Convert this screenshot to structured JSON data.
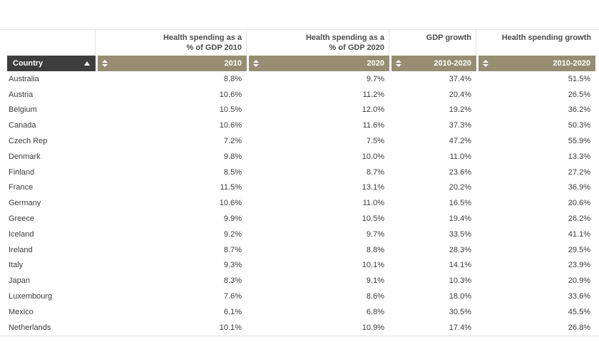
{
  "table": {
    "columns": [
      {
        "id": "country",
        "group_line1": "",
        "group_line2": "",
        "sort_label": "Country",
        "sort_state": "ascending"
      },
      {
        "id": "hs2010",
        "group_line1": "Health spending as a",
        "group_line2": "% of GDP 2010",
        "sort_label": "2010",
        "sort_state": "none"
      },
      {
        "id": "hs2020",
        "group_line1": "Health spending as a",
        "group_line2": "% of GDP 2020",
        "sort_label": "2020",
        "sort_state": "none"
      },
      {
        "id": "gdp",
        "group_line1": "GDP growth",
        "group_line2": "",
        "sort_label": "2010-2020",
        "sort_state": "none"
      },
      {
        "id": "hsg",
        "group_line1": "Health spending growth",
        "group_line2": "",
        "sort_label": "2010-2020",
        "sort_state": "none"
      }
    ],
    "rows": [
      {
        "country": "Australia",
        "hs2010": "8.8%",
        "hs2020": "9.7%",
        "gdp": "37.4%",
        "hsg": "51.5%"
      },
      {
        "country": "Austria",
        "hs2010": "10.6%",
        "hs2020": "11.2%",
        "gdp": "20.4%",
        "hsg": "26.5%"
      },
      {
        "country": "Belgium",
        "hs2010": "10.5%",
        "hs2020": "12.0%",
        "gdp": "19.2%",
        "hsg": "36.2%"
      },
      {
        "country": "Canada",
        "hs2010": "10.6%",
        "hs2020": "11.6%",
        "gdp": "37.3%",
        "hsg": "50.3%"
      },
      {
        "country": "Czech Rep",
        "hs2010": "7.2%",
        "hs2020": "7.5%",
        "gdp": "47.2%",
        "hsg": "55.9%"
      },
      {
        "country": "Denmark",
        "hs2010": "9.8%",
        "hs2020": "10.0%",
        "gdp": "11.0%",
        "hsg": "13.3%"
      },
      {
        "country": "Finland",
        "hs2010": "8.5%",
        "hs2020": "8.7%",
        "gdp": "23.6%",
        "hsg": "27.2%"
      },
      {
        "country": "France",
        "hs2010": "11.5%",
        "hs2020": "13.1%",
        "gdp": "20.2%",
        "hsg": "36.9%"
      },
      {
        "country": "Germany",
        "hs2010": "10.6%",
        "hs2020": "11.0%",
        "gdp": "16.5%",
        "hsg": "20.6%"
      },
      {
        "country": "Greece",
        "hs2010": "9.9%",
        "hs2020": "10.5%",
        "gdp": "19.4%",
        "hsg": "26.2%"
      },
      {
        "country": "Iceland",
        "hs2010": "9.2%",
        "hs2020": "9.7%",
        "gdp": "33.5%",
        "hsg": "41.1%"
      },
      {
        "country": "Ireland",
        "hs2010": "8.7%",
        "hs2020": "8.8%",
        "gdp": "28.3%",
        "hsg": "29.5%"
      },
      {
        "country": "Italy",
        "hs2010": "9.3%",
        "hs2020": "10.1%",
        "gdp": "14.1%",
        "hsg": "23.9%"
      },
      {
        "country": "Japan",
        "hs2010": "8.3%",
        "hs2020": "9.1%",
        "gdp": "10.3%",
        "hsg": "20.9%"
      },
      {
        "country": "Luxembourg",
        "hs2010": "7.6%",
        "hs2020": "8.6%",
        "gdp": "18.0%",
        "hsg": "33.6%"
      },
      {
        "country": "Mexico",
        "hs2010": "6.1%",
        "hs2020": "6.8%",
        "gdp": "30.5%",
        "hsg": "45.5%"
      },
      {
        "country": "Netherlands",
        "hs2010": "10.1%",
        "hs2020": "10.9%",
        "gdp": "17.4%",
        "hsg": "26.8%"
      }
    ]
  },
  "colors": {
    "sort_header_bg": "#968d72",
    "country_header_bg": "#3d3d3d",
    "header_text": "#ffffff",
    "group_header_text": "#4c4c4c",
    "body_text": "#3a3a3a",
    "divider": "#e4e4e4",
    "bottom_border": "#d9dde0"
  }
}
